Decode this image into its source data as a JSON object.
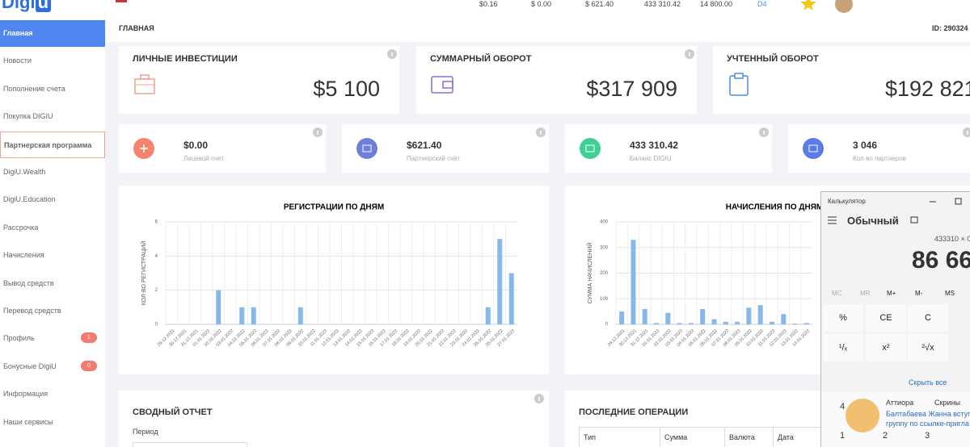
{
  "header": {
    "logo": "Digi",
    "logo_box": "u",
    "stats": [
      "$0.16",
      "$ 0.00",
      "$ 621.40",
      "433 310.42",
      "14 800.00",
      "D4"
    ]
  },
  "sidebar": [
    {
      "label": "Главная"
    },
    {
      "label": "Новости"
    },
    {
      "label": "Пополнение счета"
    },
    {
      "label": "Покупка DIGIU"
    },
    {
      "label": "Партнерская программа"
    },
    {
      "label": "DigiU.Wealth"
    },
    {
      "label": "DigiU.Education"
    },
    {
      "label": "Рассрочка"
    },
    {
      "label": "Начисления"
    },
    {
      "label": "Вывод средств"
    },
    {
      "label": "Перевод средств"
    },
    {
      "label": "Профиль",
      "badge": "1"
    },
    {
      "label": "Бонусные DigiU",
      "badge": "0"
    },
    {
      "label": "Информация"
    },
    {
      "label": "Наши сервисы"
    }
  ],
  "breadcrumb": "ГЛАВНАЯ",
  "user_id": "ID: 290324",
  "stat_cards": [
    {
      "title": "ЛИЧНЫЕ ИНВЕСТИЦИИ",
      "value": "$5 100"
    },
    {
      "title": "СУММАРНЫЙ ОБОРОТ",
      "value": "$317 909"
    },
    {
      "title": "УЧТЕННЫЙ ОБОРОТ",
      "value": "$192 821"
    }
  ],
  "balance_cards": [
    {
      "value": "$0.00",
      "label": "Лицевой счет"
    },
    {
      "value": "$621.40",
      "label": "Партнерский счет"
    },
    {
      "value": "433 310.42",
      "label": "Баланс DIGIU"
    },
    {
      "value": "3 046",
      "label": "Кол-во партнеров"
    }
  ],
  "chart_data": [
    {
      "type": "bar",
      "title": "РЕГИСТРАЦИИ ПО ДНЯМ",
      "y_label": "КОЛ-ВО РЕГИСТРАЦИЙ",
      "color": "#86b8ec",
      "categories": [
        "29.12.2021",
        "30.12.2021",
        "31.12.2021",
        "01.01.2022",
        "02.01.2022",
        "03.01.2022",
        "04.01.2022",
        "05.01.2022",
        "06.01.2022",
        "07.01.2022",
        "08.01.2022",
        "09.01.2022",
        "10.01.2022",
        "11.01.2022",
        "12.01.2022",
        "13.01.2022",
        "14.01.2022",
        "15.01.2022",
        "16.01.2022",
        "17.01.2022",
        "18.01.2022",
        "19.01.2022",
        "20.01.2022",
        "21.01.2022",
        "22.01.2022",
        "23.01.2022",
        "24.01.2022",
        "25.01.2022",
        "26.01.2022",
        "27.01.2022"
      ],
      "values": [
        0,
        0,
        0,
        0,
        2,
        0,
        1,
        1,
        0,
        0,
        0,
        1,
        0,
        0,
        0,
        0,
        0,
        0,
        0,
        0,
        0,
        0,
        0,
        0,
        0,
        0,
        0,
        1,
        5,
        3
      ],
      "ylim": [
        0,
        6
      ],
      "yticks": [
        0,
        2,
        4,
        6
      ],
      "grid": true
    },
    {
      "type": "bar",
      "title": "НАЧИСЛЕНИЯ ПО ДНЯМ",
      "y_label": "СУММА НАЧИСЛЕНИЙ",
      "color": "#86b8ec",
      "categories": [
        "29.12.2021",
        "30.12.2021",
        "31.12.2021",
        "01.01.2022",
        "02.01.2022",
        "03.01.2022",
        "04.01.2022",
        "05.01.2022",
        "06.01.2022",
        "07.01.2022",
        "08.01.2022",
        "09.01.2022",
        "10.01.2022",
        "11.01.2022",
        "12.01.2022",
        "13.01.2022",
        "14.01.2022"
      ],
      "values": [
        50,
        330,
        60,
        5,
        45,
        5,
        5,
        60,
        20,
        10,
        10,
        65,
        75,
        10,
        40,
        3,
        5
      ],
      "ylim": [
        0,
        400
      ],
      "yticks": [
        0,
        100,
        200,
        300,
        400
      ],
      "grid": true
    }
  ],
  "summary": {
    "title": "СВОДНЫЙ ОТЧЕТ",
    "period_label": "Период"
  },
  "operations": {
    "title": "ПОСЛЕДНИЕ ОПЕРАЦИИ",
    "columns": [
      "Тип",
      "Сумма",
      "Валюта",
      "Дата"
    ]
  },
  "calculator": {
    "window_title": "Калькулятор",
    "mode": "Обычный",
    "expression": "433310 × 0",
    "result": "86 66",
    "memory": [
      "MC",
      "MR",
      "M+",
      "M-",
      "MS"
    ],
    "row1": [
      "%",
      "CE",
      "C"
    ],
    "row2": [
      "¹/ₓ",
      "x²",
      "²√x"
    ],
    "hide_all": "Скрыть все",
    "notification": {
      "app1": "Аттиора",
      "app2": "Скрины",
      "line1": "Балтабаева Жанна вступи",
      "line2": "группу по ссылке-пригла"
    },
    "keys": [
      "4",
      "1",
      "2",
      "3"
    ]
  }
}
